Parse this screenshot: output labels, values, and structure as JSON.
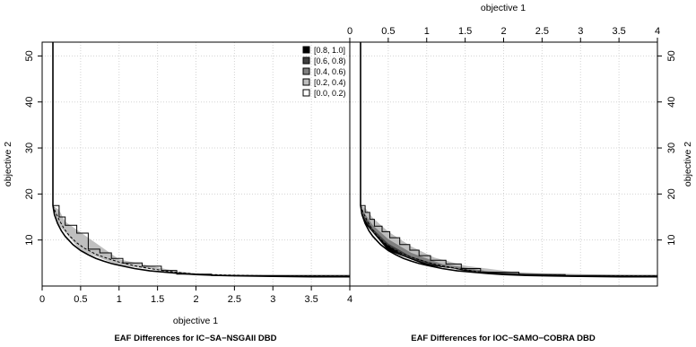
{
  "chart_data": {
    "type": "eaf-difference-plot",
    "grid": true,
    "legend_placement": "top-right of left panel",
    "legend": {
      "entries": [
        "[0.8, 1.0]",
        "[0.6, 0.8)",
        "[0.4, 0.6)",
        "[0.2, 0.4)",
        "[0.0, 0.2)"
      ],
      "colors": [
        "#000000",
        "#404040",
        "#808080",
        "#bfbfbf",
        "#ffffff"
      ]
    },
    "xlim": [
      0,
      4
    ],
    "ylim": [
      0,
      53
    ],
    "x_ticks": [
      0,
      0.5,
      1,
      1.5,
      2,
      2.5,
      3,
      3.5,
      4
    ],
    "x_tick_labels": [
      "0",
      "0.5",
      "1",
      "1.5",
      "2",
      "2.5",
      "3",
      "3.5",
      "4"
    ],
    "y_ticks": [
      10,
      20,
      30,
      40,
      50
    ],
    "y_tick_labels": [
      "10",
      "20",
      "30",
      "40",
      "50"
    ],
    "xlabel": "objective 1",
    "ylabel": "objective 2",
    "frontier_curve": [
      [
        0.14,
        53
      ],
      [
        0.14,
        17.5
      ],
      [
        0.16,
        15.5
      ],
      [
        0.2,
        13.6
      ],
      [
        0.25,
        12.0
      ],
      [
        0.3,
        10.8
      ],
      [
        0.4,
        9.0
      ],
      [
        0.5,
        7.7
      ],
      [
        0.6,
        6.8
      ],
      [
        0.7,
        6.0
      ],
      [
        0.8,
        5.4
      ],
      [
        0.9,
        4.9
      ],
      [
        1.0,
        4.5
      ],
      [
        1.2,
        3.8
      ],
      [
        1.4,
        3.3
      ],
      [
        1.6,
        3.0
      ],
      [
        1.8,
        2.7
      ],
      [
        2.0,
        2.5
      ],
      [
        2.3,
        2.3
      ],
      [
        2.6,
        2.2
      ],
      [
        3.0,
        2.1
      ],
      [
        3.5,
        2.0
      ],
      [
        4.0,
        2.0
      ]
    ],
    "dashed_curve": [
      [
        0.14,
        17.5
      ],
      [
        0.18,
        15.8
      ],
      [
        0.22,
        14.4
      ],
      [
        0.28,
        12.6
      ],
      [
        0.35,
        11.0
      ],
      [
        0.45,
        9.4
      ],
      [
        0.55,
        8.2
      ],
      [
        0.7,
        6.9
      ],
      [
        0.85,
        6.0
      ],
      [
        1.0,
        5.2
      ],
      [
        1.2,
        4.4
      ],
      [
        1.4,
        3.8
      ],
      [
        1.6,
        3.3
      ],
      [
        1.8,
        2.9
      ],
      [
        2.0,
        2.6
      ],
      [
        2.4,
        2.4
      ],
      [
        3.0,
        2.2
      ],
      [
        4.0,
        2.1
      ]
    ],
    "left_panel": {
      "caption": "EAF Differences for IC−SA−NSGAII DBD",
      "x_axis_side": "bottom",
      "y_axis_side": "left",
      "step_outline": [
        [
          0.14,
          17.5
        ],
        [
          0.22,
          17.5
        ],
        [
          0.22,
          15.0
        ],
        [
          0.3,
          15.0
        ],
        [
          0.3,
          13.2
        ],
        [
          0.45,
          13.2
        ],
        [
          0.45,
          11.5
        ],
        [
          0.6,
          11.5
        ],
        [
          0.6,
          8.0
        ],
        [
          0.75,
          8.0
        ],
        [
          0.75,
          7.2
        ],
        [
          0.9,
          7.2
        ],
        [
          0.9,
          6.0
        ],
        [
          1.05,
          6.0
        ],
        [
          1.05,
          5.0
        ],
        [
          1.3,
          5.0
        ],
        [
          1.3,
          4.3
        ],
        [
          1.55,
          4.3
        ],
        [
          1.55,
          3.4
        ],
        [
          1.75,
          3.4
        ],
        [
          1.75,
          2.6
        ],
        [
          2.2,
          2.6
        ],
        [
          2.2,
          2.3
        ],
        [
          4.0,
          2.3
        ]
      ],
      "shaded_region": [
        {
          "range": "[0.8, 1.0]",
          "points": []
        },
        {
          "range": "[0.6, 0.8)",
          "points": []
        },
        {
          "range": "[0.4, 0.6)",
          "points": []
        },
        {
          "range": "[0.2, 0.4)",
          "points": [
            [
              0.14,
              17.5
            ],
            [
              0.22,
              16.5
            ],
            [
              0.3,
              14.0
            ],
            [
              0.6,
              10.5
            ],
            [
              1.0,
              5.8
            ],
            [
              1.75,
              3.2
            ],
            [
              2.2,
              2.5
            ],
            [
              4.0,
              2.2
            ],
            [
              4.0,
              2.0
            ],
            [
              2.0,
              2.5
            ],
            [
              1.0,
              4.5
            ],
            [
              0.5,
              7.7
            ],
            [
              0.2,
              13.6
            ]
          ]
        }
      ]
    },
    "right_panel": {
      "caption": "EAF Differences for IOC−SAMO−COBRA DBD",
      "x_axis_side": "top",
      "y_axis_side": "right",
      "step_outline": [
        [
          0.14,
          17.5
        ],
        [
          0.2,
          17.5
        ],
        [
          0.2,
          16.0
        ],
        [
          0.26,
          16.0
        ],
        [
          0.26,
          14.5
        ],
        [
          0.32,
          14.5
        ],
        [
          0.32,
          13.0
        ],
        [
          0.42,
          13.0
        ],
        [
          0.42,
          11.8
        ],
        [
          0.52,
          11.8
        ],
        [
          0.52,
          10.5
        ],
        [
          0.65,
          10.5
        ],
        [
          0.65,
          9.0
        ],
        [
          0.78,
          9.0
        ],
        [
          0.78,
          7.8
        ],
        [
          0.9,
          7.8
        ],
        [
          0.9,
          6.6
        ],
        [
          1.05,
          6.6
        ],
        [
          1.05,
          5.6
        ],
        [
          1.25,
          5.6
        ],
        [
          1.25,
          4.8
        ],
        [
          1.45,
          4.8
        ],
        [
          1.45,
          3.8
        ],
        [
          1.7,
          3.8
        ],
        [
          1.7,
          3.0
        ],
        [
          2.2,
          3.0
        ],
        [
          2.2,
          2.5
        ],
        [
          2.8,
          2.5
        ],
        [
          2.8,
          2.3
        ],
        [
          4.0,
          2.3
        ]
      ],
      "shaded_region": [
        {
          "range": "[0.2, 0.4)",
          "points": [
            [
              0.14,
              17.5
            ],
            [
              0.2,
              17.0
            ],
            [
              0.3,
              14.8
            ],
            [
              0.5,
              11.8
            ],
            [
              0.8,
              8.6
            ],
            [
              1.1,
              6.2
            ],
            [
              1.5,
              4.4
            ],
            [
              2.2,
              2.9
            ],
            [
              4.0,
              2.25
            ],
            [
              4.0,
              2.0
            ],
            [
              2.0,
              2.5
            ],
            [
              1.0,
              4.5
            ],
            [
              0.5,
              7.7
            ],
            [
              0.2,
              13.6
            ]
          ]
        },
        {
          "range": "[0.4, 0.6)",
          "points": [
            [
              0.14,
              17.0
            ],
            [
              0.2,
              15.6
            ],
            [
              0.3,
              13.2
            ],
            [
              0.5,
              10.2
            ],
            [
              0.8,
              7.2
            ],
            [
              1.2,
              4.8
            ],
            [
              1.8,
              3.2
            ],
            [
              3.0,
              2.3
            ],
            [
              4.0,
              2.1
            ],
            [
              4.0,
              2.0
            ],
            [
              2.0,
              2.5
            ],
            [
              1.0,
              4.5
            ],
            [
              0.5,
              7.7
            ],
            [
              0.2,
              13.6
            ]
          ]
        },
        {
          "range": "[0.6, 0.8)",
          "points": [
            [
              0.14,
              16.4
            ],
            [
              0.2,
              14.8
            ],
            [
              0.3,
              12.4
            ],
            [
              0.5,
              9.2
            ],
            [
              0.8,
              6.4
            ],
            [
              1.2,
              4.3
            ],
            [
              1.8,
              2.9
            ],
            [
              3.0,
              2.2
            ],
            [
              4.0,
              2.05
            ],
            [
              4.0,
              2.0
            ],
            [
              2.0,
              2.5
            ],
            [
              1.0,
              4.5
            ],
            [
              0.5,
              7.7
            ],
            [
              0.2,
              13.6
            ]
          ]
        },
        {
          "range": "[0.8, 1.0]",
          "points": [
            [
              0.14,
              16.0
            ],
            [
              0.2,
              14.3
            ],
            [
              0.3,
              11.8
            ],
            [
              0.45,
              9.3
            ],
            [
              0.7,
              6.6
            ],
            [
              1.0,
              4.9
            ],
            [
              1.5,
              3.3
            ],
            [
              2.5,
              2.3
            ],
            [
              4.0,
              2.0
            ],
            [
              2.0,
              2.5
            ],
            [
              1.0,
              4.5
            ],
            [
              0.5,
              7.7
            ],
            [
              0.2,
              13.6
            ]
          ]
        }
      ]
    }
  }
}
